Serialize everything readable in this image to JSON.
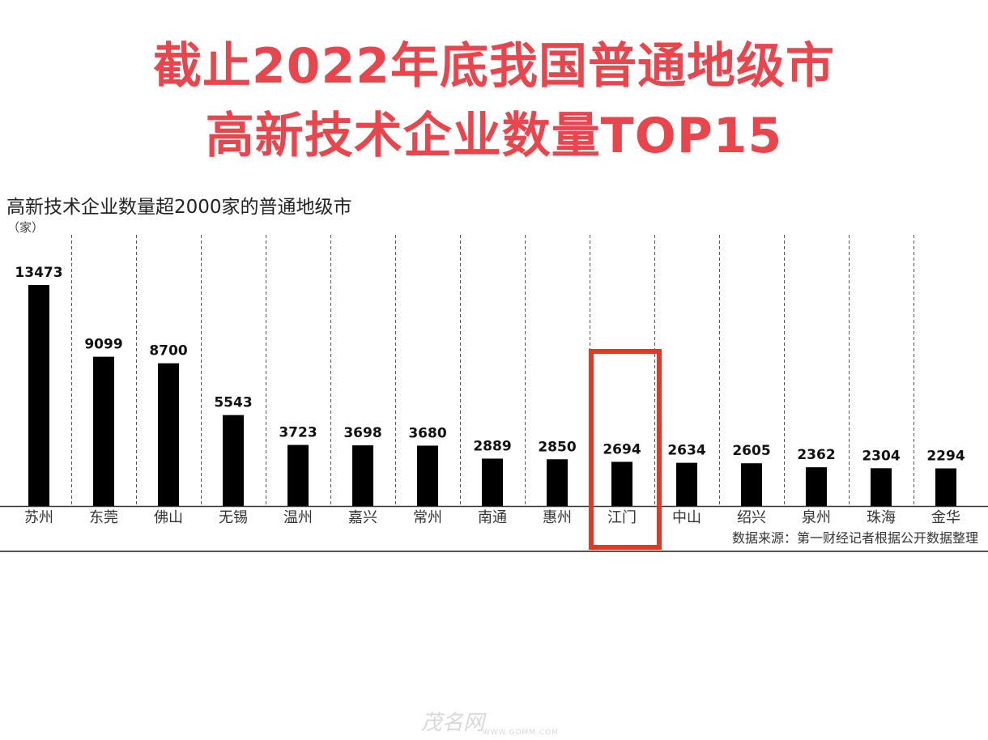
{
  "headline": {
    "line1": "截止2022年底我国普通地级市",
    "line2": "高新技术企业数量TOP15"
  },
  "chart_data": {
    "type": "bar",
    "title": "高新技术企业数量超2000家的普通地级市",
    "unit": "（家）",
    "categories": [
      "苏州",
      "东莞",
      "佛山",
      "无锡",
      "温州",
      "嘉兴",
      "常州",
      "南通",
      "惠州",
      "江门",
      "中山",
      "绍兴",
      "泉州",
      "珠海",
      "金华"
    ],
    "values": [
      13473,
      9099,
      8700,
      5543,
      3723,
      3698,
      3680,
      2889,
      2850,
      2694,
      2634,
      2605,
      2362,
      2304,
      2294
    ],
    "highlight": "江门",
    "ylim": [
      0,
      14000
    ],
    "grid": "vertical dashed separators",
    "bar_color": "#000000",
    "highlight_color": "#e03a26"
  },
  "source": "数据来源：第一财经记者根据公开数据整理",
  "watermark": {
    "logo": "茂名网",
    "url": "WWW.GDMM.COM"
  }
}
